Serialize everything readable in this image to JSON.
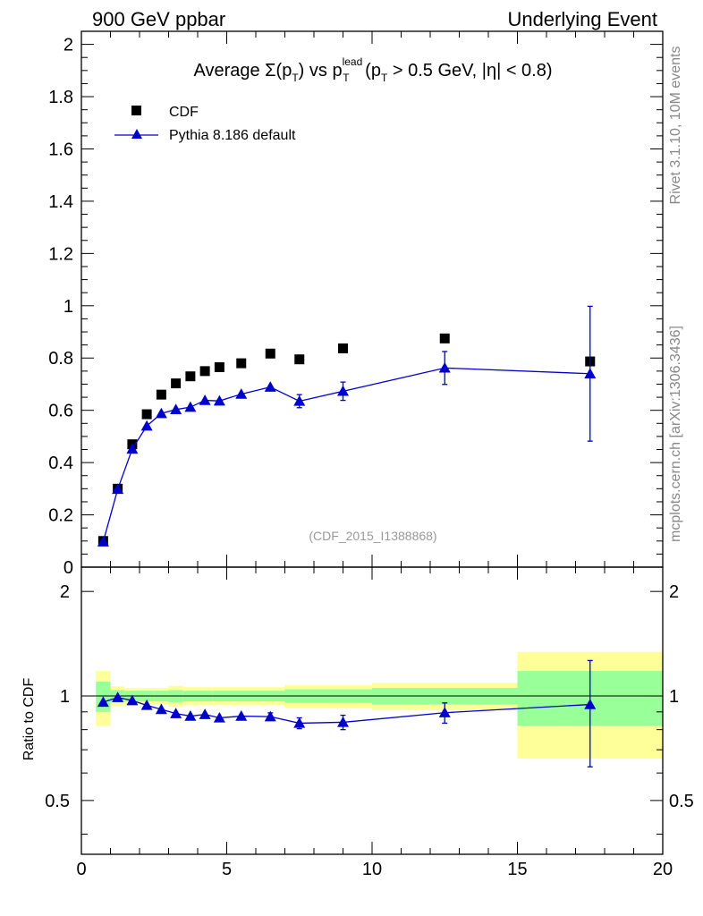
{
  "header": {
    "left_label": "900 GeV ppbar",
    "right_label": "Underlying Event"
  },
  "side_labels": {
    "rivet": "Rivet 3.1.10,  10M events",
    "source": "mcplots.cern.ch [arXiv:1306.3436]"
  },
  "colors": {
    "mc_line": "#0000cc",
    "data_marker": "#000000",
    "band_inner": "#99ff99",
    "band_outer": "#ffff99"
  },
  "chart_data": [
    {
      "type": "scatter",
      "panel": "main",
      "title": {
        "prefix": "Average ",
        "sigma": "Σ(p",
        "sub_t": "T",
        "mid": ") vs p",
        "sup_lead": "lead",
        "cut_open": " (p",
        "cut_rest": " > 0.5 GeV, |η| < 0.8)"
      },
      "watermark": "(CDF_2015_I1388868)",
      "xlim": [
        0,
        20
      ],
      "ylim": [
        0,
        2.05
      ],
      "yticks": [
        "0",
        "0.2",
        "0.4",
        "0.6",
        "0.8",
        "1",
        "1.2",
        "1.4",
        "1.6",
        "1.8",
        "2"
      ],
      "legend_position": "top-left",
      "series": [
        {
          "name": "CDF",
          "marker": "square",
          "x": [
            0.75,
            1.25,
            1.75,
            2.25,
            2.75,
            3.25,
            3.75,
            4.25,
            4.75,
            5.5,
            6.5,
            7.5,
            9.0,
            12.5,
            17.5
          ],
          "y": [
            0.1,
            0.3,
            0.47,
            0.585,
            0.66,
            0.703,
            0.73,
            0.75,
            0.765,
            0.78,
            0.817,
            0.795,
            0.837,
            0.875,
            0.787
          ]
        },
        {
          "name": "Pythia 8.186 default",
          "marker": "triangle",
          "x": [
            0.75,
            1.25,
            1.75,
            2.25,
            2.75,
            3.25,
            3.75,
            4.25,
            4.75,
            5.5,
            6.5,
            7.5,
            9.0,
            12.5,
            17.5
          ],
          "y": [
            0.097,
            0.298,
            0.452,
            0.54,
            0.588,
            0.603,
            0.612,
            0.638,
            0.636,
            0.662,
            0.689,
            0.635,
            0.673,
            0.762,
            0.74
          ],
          "yerr": [
            0.003,
            0.004,
            0.005,
            0.006,
            0.007,
            0.007,
            0.008,
            0.009,
            0.009,
            0.01,
            0.018,
            0.025,
            0.035,
            0.063,
            0.258
          ]
        }
      ]
    },
    {
      "type": "scatter",
      "panel": "ratio",
      "ylabel": "Ratio to CDF",
      "xlabel": "",
      "xlim": [
        0,
        20
      ],
      "ylim": [
        0.35,
        2.35
      ],
      "xticks": [
        "0",
        "5",
        "10",
        "15",
        "20"
      ],
      "yticks": [
        "0.5",
        "1",
        "2"
      ],
      "bands": {
        "edges": [
          0.5,
          1.0,
          1.5,
          2.0,
          2.5,
          3.0,
          3.5,
          4.0,
          4.5,
          5.0,
          6.0,
          7.0,
          8.0,
          10.0,
          15.0,
          20.0
        ],
        "inner": [
          0.1,
          0.04,
          0.035,
          0.035,
          0.035,
          0.04,
          0.035,
          0.035,
          0.035,
          0.035,
          0.035,
          0.045,
          0.045,
          0.055,
          0.18
        ],
        "outer": [
          0.18,
          0.065,
          0.055,
          0.055,
          0.055,
          0.07,
          0.06,
          0.06,
          0.06,
          0.06,
          0.06,
          0.075,
          0.075,
          0.09,
          0.34
        ]
      },
      "series": [
        {
          "name": "Pythia 8.186 default",
          "marker": "triangle",
          "x": [
            0.75,
            1.25,
            1.75,
            2.25,
            2.75,
            3.25,
            3.75,
            4.25,
            4.75,
            5.5,
            6.5,
            7.5,
            9.0,
            12.5,
            17.5
          ],
          "y": [
            0.96,
            0.99,
            0.97,
            0.94,
            0.915,
            0.89,
            0.875,
            0.885,
            0.865,
            0.875,
            0.872,
            0.835,
            0.84,
            0.895,
            0.945
          ],
          "yerr": [
            0.015,
            0.015,
            0.012,
            0.012,
            0.012,
            0.012,
            0.012,
            0.013,
            0.013,
            0.014,
            0.022,
            0.03,
            0.04,
            0.06,
            0.32
          ]
        }
      ]
    }
  ]
}
